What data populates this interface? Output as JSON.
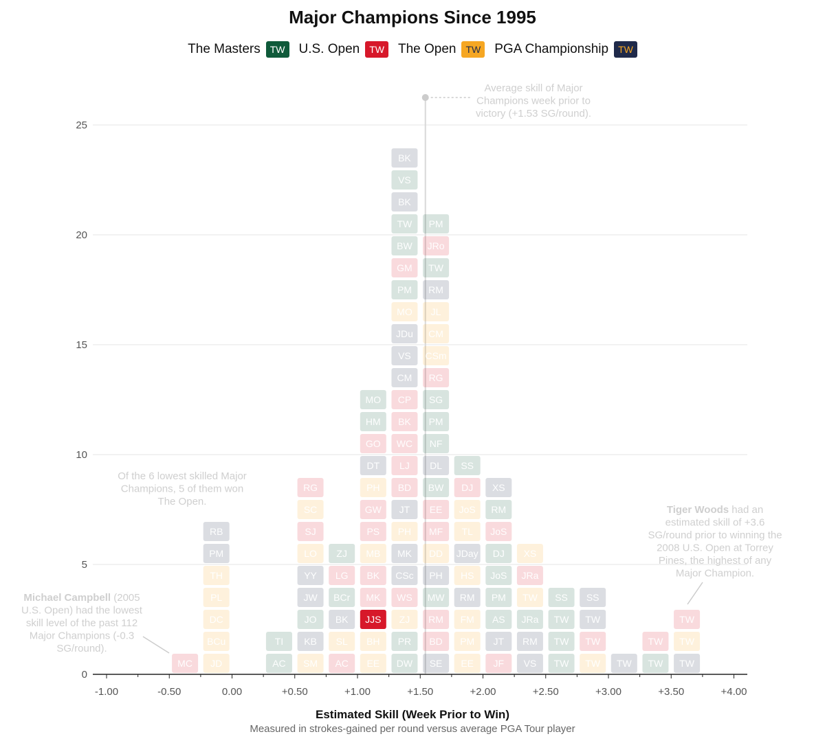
{
  "colors": {
    "masters": "#0f5a3a",
    "usopen": "#d7182a",
    "theopen": "#f6a723",
    "pga": "#1f2a4a"
  },
  "legend_items": [
    {
      "label": "The Masters",
      "badge": "TW",
      "key": "masters"
    },
    {
      "label": "U.S. Open",
      "badge": "TW",
      "key": "usopen"
    },
    {
      "label": "The Open",
      "badge": "TW",
      "key": "theopen"
    },
    {
      "label": "PGA Championship",
      "badge": "TW",
      "key": "pga"
    }
  ],
  "annotations": {
    "average": [
      "Average skill of Major",
      "Champions week prior to",
      "victory (+1.53 SG/round)."
    ],
    "lowest": [
      "Of the 6 lowest skilled Major",
      "Champions, 5 of them won",
      "The Open."
    ],
    "campbell": {
      "bold": "Michael Campbell",
      "line1_rest": " (2005",
      "rest": [
        "U.S. Open) had the lowest",
        "skill level of the past 112",
        "Major Champions (-0.3",
        "SG/round)."
      ]
    },
    "tiger": {
      "bold": "Tiger Woods",
      "line1_rest": " had an",
      "rest": [
        "estimated skill of +3.6",
        "SG/round prior to winning the",
        "2008 U.S. Open at Torrey",
        "Pines, the highest of any",
        "Major Champion."
      ]
    }
  },
  "chart_data": {
    "type": "table",
    "title": "Major Champions Since 1995",
    "xlabel": "Estimated Skill (Week Prior to Win)",
    "subtitle": "Measured in strokes-gained per round versus average PGA Tour player",
    "xlim": [
      -1.0,
      4.0
    ],
    "ylim": [
      0,
      26
    ],
    "x_ticks": [
      "-1.00",
      "-0.50",
      "0.00",
      "+0.50",
      "+1.00",
      "+1.50",
      "+2.00",
      "+2.50",
      "+3.00",
      "+3.50",
      "+4.00"
    ],
    "y_ticks": [
      "0",
      "5",
      "10",
      "15",
      "20",
      "25"
    ],
    "average_skill": 1.53,
    "legend_placement": "top-center",
    "grid": "horizontal",
    "highlight": [
      "JJS"
    ],
    "bins": [
      {
        "x": -0.375,
        "players": [
          [
            "MC",
            "usopen"
          ]
        ]
      },
      {
        "x": -0.125,
        "players": [
          [
            "JD",
            "theopen"
          ],
          [
            "BCu",
            "theopen"
          ],
          [
            "DC",
            "theopen"
          ],
          [
            "PL",
            "theopen"
          ],
          [
            "TH",
            "theopen"
          ],
          [
            "PM",
            "pga"
          ],
          [
            "RB",
            "pga"
          ]
        ]
      },
      {
        "x": 0.375,
        "players": [
          [
            "AC",
            "masters"
          ],
          [
            "TI",
            "masters"
          ]
        ]
      },
      {
        "x": 0.625,
        "players": [
          [
            "SM",
            "theopen"
          ],
          [
            "KB",
            "pga"
          ],
          [
            "JO",
            "masters"
          ],
          [
            "JW",
            "pga"
          ],
          [
            "YY",
            "pga"
          ],
          [
            "LO",
            "theopen"
          ],
          [
            "SJ",
            "usopen"
          ],
          [
            "SC",
            "theopen"
          ],
          [
            "RG",
            "usopen"
          ]
        ]
      },
      {
        "x": 0.875,
        "players": [
          [
            "AC",
            "usopen"
          ],
          [
            "SL",
            "theopen"
          ],
          [
            "BK",
            "pga"
          ],
          [
            "BCr",
            "masters"
          ],
          [
            "LG",
            "usopen"
          ],
          [
            "ZJ",
            "masters"
          ]
        ]
      },
      {
        "x": 1.125,
        "players": [
          [
            "EE",
            "theopen"
          ],
          [
            "BH",
            "theopen"
          ],
          [
            "JJS",
            "usopen"
          ],
          [
            "MK",
            "usopen"
          ],
          [
            "BK",
            "usopen"
          ],
          [
            "MB",
            "theopen"
          ],
          [
            "PS",
            "usopen"
          ],
          [
            "GW",
            "usopen"
          ],
          [
            "PH",
            "theopen"
          ],
          [
            "DT",
            "pga"
          ],
          [
            "GO",
            "usopen"
          ],
          [
            "HM",
            "masters"
          ],
          [
            "MO",
            "masters"
          ]
        ]
      },
      {
        "x": 1.375,
        "players": [
          [
            "DW",
            "masters"
          ],
          [
            "PR",
            "masters"
          ],
          [
            "ZJ",
            "theopen"
          ],
          [
            "WS",
            "usopen"
          ],
          [
            "CSc",
            "pga"
          ],
          [
            "MK",
            "pga"
          ],
          [
            "PH",
            "theopen"
          ],
          [
            "JT",
            "pga"
          ],
          [
            "BD",
            "usopen"
          ],
          [
            "LJ",
            "usopen"
          ],
          [
            "WC",
            "usopen"
          ],
          [
            "BK",
            "usopen"
          ],
          [
            "CP",
            "usopen"
          ],
          [
            "CM",
            "pga"
          ],
          [
            "VS",
            "pga"
          ],
          [
            "JDu",
            "pga"
          ],
          [
            "MO",
            "theopen"
          ],
          [
            "PM",
            "masters"
          ],
          [
            "GM",
            "usopen"
          ],
          [
            "BW",
            "masters"
          ],
          [
            "TW",
            "masters"
          ],
          [
            "BK",
            "pga"
          ],
          [
            "VS",
            "masters"
          ],
          [
            "BK",
            "pga"
          ]
        ]
      },
      {
        "x": 1.625,
        "players": [
          [
            "SE",
            "pga"
          ],
          [
            "BD",
            "usopen"
          ],
          [
            "RM",
            "usopen"
          ],
          [
            "MW",
            "masters"
          ],
          [
            "PH",
            "pga"
          ],
          [
            "DD",
            "theopen"
          ],
          [
            "MF",
            "usopen"
          ],
          [
            "EE",
            "usopen"
          ],
          [
            "BW",
            "masters"
          ],
          [
            "DL",
            "pga"
          ],
          [
            "NF",
            "masters"
          ],
          [
            "PM",
            "masters"
          ],
          [
            "SG",
            "masters"
          ],
          [
            "RG",
            "usopen"
          ],
          [
            "CSm",
            "theopen"
          ],
          [
            "CM",
            "theopen"
          ],
          [
            "JL",
            "theopen"
          ],
          [
            "RM",
            "pga"
          ],
          [
            "TW",
            "masters"
          ],
          [
            "JRo",
            "usopen"
          ],
          [
            "PM",
            "masters"
          ]
        ]
      },
      {
        "x": 1.875,
        "players": [
          [
            "EE",
            "theopen"
          ],
          [
            "PM",
            "theopen"
          ],
          [
            "FM",
            "theopen"
          ],
          [
            "RM",
            "pga"
          ],
          [
            "HS",
            "theopen"
          ],
          [
            "JDay",
            "pga"
          ],
          [
            "TL",
            "theopen"
          ],
          [
            "JoS",
            "theopen"
          ],
          [
            "DJ",
            "usopen"
          ],
          [
            "SS",
            "masters"
          ]
        ]
      },
      {
        "x": 2.125,
        "players": [
          [
            "JF",
            "usopen"
          ],
          [
            "JT",
            "pga"
          ],
          [
            "AS",
            "masters"
          ],
          [
            "PM",
            "masters"
          ],
          [
            "JoS",
            "masters"
          ],
          [
            "DJ",
            "masters"
          ],
          [
            "JoS",
            "usopen"
          ],
          [
            "RM",
            "masters"
          ],
          [
            "XS",
            "pga"
          ]
        ]
      },
      {
        "x": 2.375,
        "players": [
          [
            "VS",
            "pga"
          ],
          [
            "RM",
            "pga"
          ],
          [
            "JRa",
            "masters"
          ],
          [
            "TW",
            "theopen"
          ],
          [
            "JRa",
            "usopen"
          ],
          [
            "XS",
            "theopen"
          ]
        ]
      },
      {
        "x": 2.625,
        "players": [
          [
            "TW",
            "masters"
          ],
          [
            "TW",
            "masters"
          ],
          [
            "TW",
            "masters"
          ],
          [
            "SS",
            "masters"
          ]
        ]
      },
      {
        "x": 2.875,
        "players": [
          [
            "TW",
            "theopen"
          ],
          [
            "TW",
            "usopen"
          ],
          [
            "TW",
            "pga"
          ],
          [
            "SS",
            "pga"
          ]
        ]
      },
      {
        "x": 3.125,
        "players": [
          [
            "TW",
            "pga"
          ]
        ]
      },
      {
        "x": 3.375,
        "players": [
          [
            "TW",
            "masters"
          ],
          [
            "TW",
            "usopen"
          ]
        ]
      },
      {
        "x": 3.625,
        "players": [
          [
            "TW",
            "pga"
          ],
          [
            "TW",
            "theopen"
          ],
          [
            "TW",
            "usopen"
          ]
        ]
      }
    ]
  }
}
